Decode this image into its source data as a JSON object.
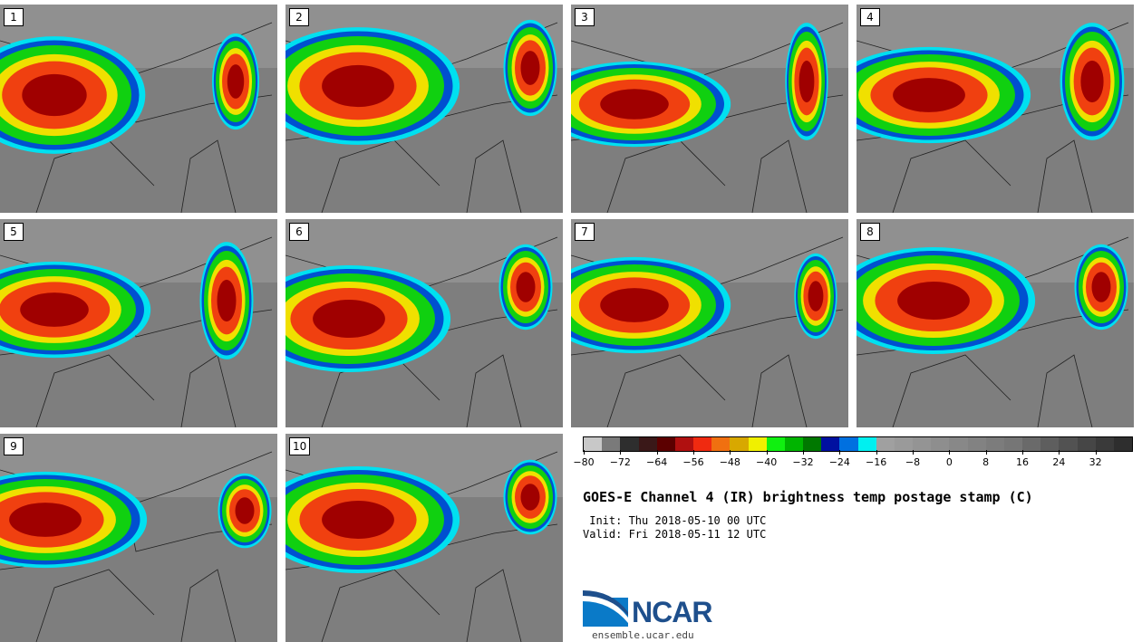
{
  "panels": [
    {
      "label": "1"
    },
    {
      "label": "2"
    },
    {
      "label": "3"
    },
    {
      "label": "4"
    },
    {
      "label": "5"
    },
    {
      "label": "6"
    },
    {
      "label": "7"
    },
    {
      "label": "8"
    },
    {
      "label": "9"
    },
    {
      "label": "10"
    }
  ],
  "colorbar": {
    "colors": [
      "#c8c8c8",
      "#7a7a7a",
      "#2e2e2e",
      "#3a1818",
      "#5c0000",
      "#b01010",
      "#f02a10",
      "#f07010",
      "#d8a800",
      "#f0f000",
      "#10f010",
      "#00b400",
      "#007800",
      "#0010a0",
      "#0070e0",
      "#00f0f0",
      "#a0a0a0",
      "#9a9a9a",
      "#949494",
      "#8e8e8e",
      "#888888",
      "#828282",
      "#7c7c7c",
      "#767676",
      "#6a6a6a",
      "#5e5e5e",
      "#525252",
      "#464646",
      "#3a3a3a",
      "#2e2e2e"
    ],
    "tick_labels": [
      "−80",
      "−72",
      "−64",
      "−56",
      "−48",
      "−40",
      "−32",
      "−24",
      "−16",
      "−8",
      "0",
      "8",
      "16",
      "24",
      "32"
    ]
  },
  "title": "GOES-E Channel 4 (IR) brightness temp postage stamp (C)",
  "init_line": " Init: Thu 2018-05-10 00 UTC",
  "valid_line": "Valid: Fri 2018-05-11 12 UTC",
  "logo_text": "NCAR",
  "site": "ensemble.ucar.edu"
}
